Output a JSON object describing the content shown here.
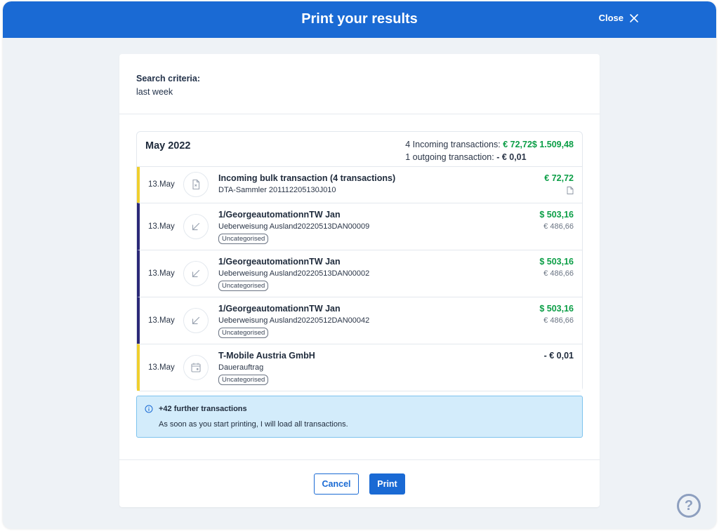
{
  "header": {
    "title": "Print your results",
    "close_label": "Close"
  },
  "criteria": {
    "label": "Search criteria:",
    "value": "last week"
  },
  "month": {
    "title": "May 2022",
    "incoming_label": "4 Incoming transactions:",
    "incoming_amounts": "€ 72,72$ 1.509,48",
    "outgoing_label": "1 outgoing transaction:",
    "outgoing_amount": "- € 0,01"
  },
  "transactions": [
    {
      "date": "13.May",
      "title": "Incoming bulk transaction (4 transactions)",
      "subtitle": "DTA-Sammler 201112205130J010",
      "amount": "€ 72,72",
      "icon": "document-icon"
    },
    {
      "date": "13.May",
      "title": "1/GeorgeautomationnTW Jan",
      "subtitle": "Ueberweisung Ausland20220513DAN00009",
      "badge": "Uncategorised",
      "amount": "$ 503,16",
      "secondary_amount": "€ 486,66",
      "icon": "arrow-down-left-icon"
    },
    {
      "date": "13.May",
      "title": "1/GeorgeautomationnTW Jan",
      "subtitle": "Ueberweisung Ausland20220513DAN00002",
      "badge": "Uncategorised",
      "amount": "$ 503,16",
      "secondary_amount": "€ 486,66",
      "icon": "arrow-down-left-icon"
    },
    {
      "date": "13.May",
      "title": "1/GeorgeautomationnTW Jan",
      "subtitle": "Ueberweisung Ausland20220512DAN00042",
      "badge": "Uncategorised",
      "amount": "$ 503,16",
      "secondary_amount": "€ 486,66",
      "icon": "arrow-down-left-icon"
    },
    {
      "date": "13.May",
      "title": "T-Mobile Austria GmbH",
      "subtitle": "Dauerauftrag",
      "badge": "Uncategorised",
      "amount": "- € 0,01",
      "icon": "calendar-icon"
    }
  ],
  "info": {
    "title": "+42 further transactions",
    "text": "As soon as you start printing, I will load all transactions."
  },
  "buttons": {
    "cancel": "Cancel",
    "print": "Print"
  },
  "help": {
    "symbol": "?"
  },
  "colors": {
    "header": "#1a6ad4",
    "incoming_amount": "#0b9e46",
    "stripe_bulk_outgoing": "#f0cf2e",
    "stripe_incoming": "#2b2977",
    "info_bg": "#d3ecfb"
  }
}
